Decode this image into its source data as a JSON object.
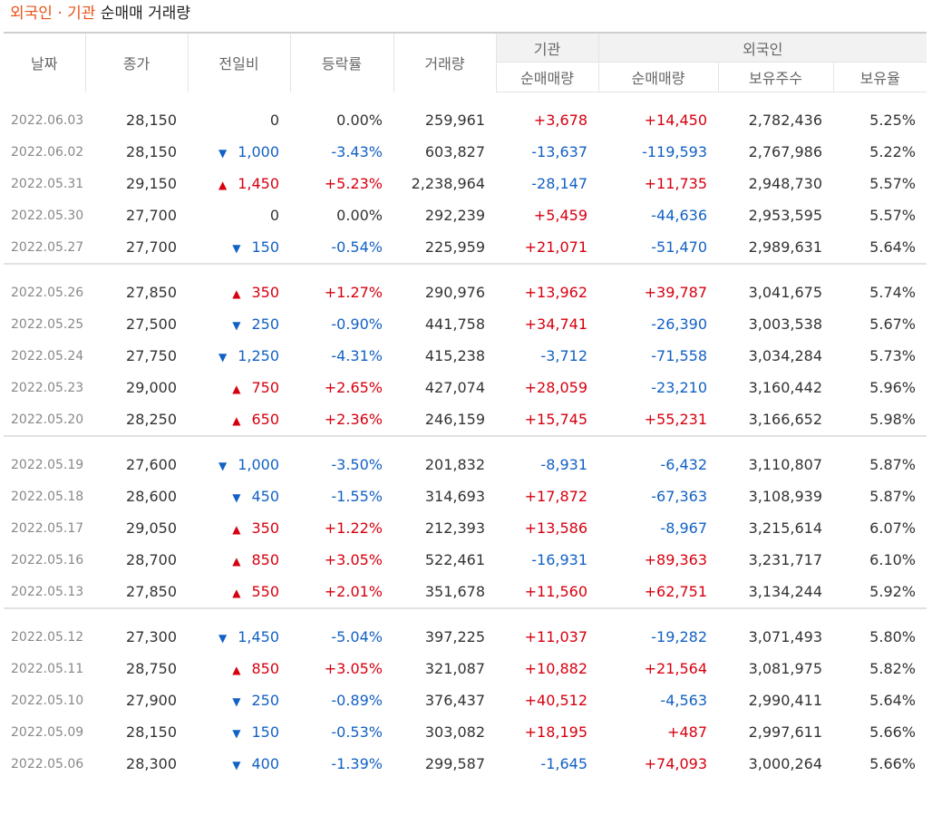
{
  "title": {
    "part1": "외국인",
    "dot": "·",
    "part2": "기관",
    "rest": "순매매 거래량"
  },
  "headers": {
    "date": "날짜",
    "close": "종가",
    "change": "전일비",
    "rate": "등락률",
    "volume": "거래량",
    "institution": "기관",
    "foreign": "외국인",
    "inst_net": "순매매량",
    "foreign_net": "순매매량",
    "holdings": "보유주수",
    "holding_rate": "보유율"
  },
  "colors": {
    "up": "#d6000f",
    "down": "#1261c4",
    "accent": "#e8541a"
  },
  "groups": [
    [
      {
        "date": "2022.06.03",
        "close": "28,150",
        "dir": "none",
        "change": "0",
        "rate": "0.00%",
        "volume": "259,961",
        "inst": "+3,678",
        "foreign": "+14,450",
        "holdings": "2,782,436",
        "hold_rate": "5.25%"
      },
      {
        "date": "2022.06.02",
        "close": "28,150",
        "dir": "down",
        "change": "1,000",
        "rate": "-3.43%",
        "volume": "603,827",
        "inst": "-13,637",
        "foreign": "-119,593",
        "holdings": "2,767,986",
        "hold_rate": "5.22%"
      },
      {
        "date": "2022.05.31",
        "close": "29,150",
        "dir": "up",
        "change": "1,450",
        "rate": "+5.23%",
        "volume": "2,238,964",
        "inst": "-28,147",
        "foreign": "+11,735",
        "holdings": "2,948,730",
        "hold_rate": "5.57%"
      },
      {
        "date": "2022.05.30",
        "close": "27,700",
        "dir": "none",
        "change": "0",
        "rate": "0.00%",
        "volume": "292,239",
        "inst": "+5,459",
        "foreign": "-44,636",
        "holdings": "2,953,595",
        "hold_rate": "5.57%"
      },
      {
        "date": "2022.05.27",
        "close": "27,700",
        "dir": "down",
        "change": "150",
        "rate": "-0.54%",
        "volume": "225,959",
        "inst": "+21,071",
        "foreign": "-51,470",
        "holdings": "2,989,631",
        "hold_rate": "5.64%"
      }
    ],
    [
      {
        "date": "2022.05.26",
        "close": "27,850",
        "dir": "up",
        "change": "350",
        "rate": "+1.27%",
        "volume": "290,976",
        "inst": "+13,962",
        "foreign": "+39,787",
        "holdings": "3,041,675",
        "hold_rate": "5.74%"
      },
      {
        "date": "2022.05.25",
        "close": "27,500",
        "dir": "down",
        "change": "250",
        "rate": "-0.90%",
        "volume": "441,758",
        "inst": "+34,741",
        "foreign": "-26,390",
        "holdings": "3,003,538",
        "hold_rate": "5.67%"
      },
      {
        "date": "2022.05.24",
        "close": "27,750",
        "dir": "down",
        "change": "1,250",
        "rate": "-4.31%",
        "volume": "415,238",
        "inst": "-3,712",
        "foreign": "-71,558",
        "holdings": "3,034,284",
        "hold_rate": "5.73%"
      },
      {
        "date": "2022.05.23",
        "close": "29,000",
        "dir": "up",
        "change": "750",
        "rate": "+2.65%",
        "volume": "427,074",
        "inst": "+28,059",
        "foreign": "-23,210",
        "holdings": "3,160,442",
        "hold_rate": "5.96%"
      },
      {
        "date": "2022.05.20",
        "close": "28,250",
        "dir": "up",
        "change": "650",
        "rate": "+2.36%",
        "volume": "246,159",
        "inst": "+15,745",
        "foreign": "+55,231",
        "holdings": "3,166,652",
        "hold_rate": "5.98%"
      }
    ],
    [
      {
        "date": "2022.05.19",
        "close": "27,600",
        "dir": "down",
        "change": "1,000",
        "rate": "-3.50%",
        "volume": "201,832",
        "inst": "-8,931",
        "foreign": "-6,432",
        "holdings": "3,110,807",
        "hold_rate": "5.87%"
      },
      {
        "date": "2022.05.18",
        "close": "28,600",
        "dir": "down",
        "change": "450",
        "rate": "-1.55%",
        "volume": "314,693",
        "inst": "+17,872",
        "foreign": "-67,363",
        "holdings": "3,108,939",
        "hold_rate": "5.87%"
      },
      {
        "date": "2022.05.17",
        "close": "29,050",
        "dir": "up",
        "change": "350",
        "rate": "+1.22%",
        "volume": "212,393",
        "inst": "+13,586",
        "foreign": "-8,967",
        "holdings": "3,215,614",
        "hold_rate": "6.07%"
      },
      {
        "date": "2022.05.16",
        "close": "28,700",
        "dir": "up",
        "change": "850",
        "rate": "+3.05%",
        "volume": "522,461",
        "inst": "-16,931",
        "foreign": "+89,363",
        "holdings": "3,231,717",
        "hold_rate": "6.10%"
      },
      {
        "date": "2022.05.13",
        "close": "27,850",
        "dir": "up",
        "change": "550",
        "rate": "+2.01%",
        "volume": "351,678",
        "inst": "+11,560",
        "foreign": "+62,751",
        "holdings": "3,134,244",
        "hold_rate": "5.92%"
      }
    ],
    [
      {
        "date": "2022.05.12",
        "close": "27,300",
        "dir": "down",
        "change": "1,450",
        "rate": "-5.04%",
        "volume": "397,225",
        "inst": "+11,037",
        "foreign": "-19,282",
        "holdings": "3,071,493",
        "hold_rate": "5.80%"
      },
      {
        "date": "2022.05.11",
        "close": "28,750",
        "dir": "up",
        "change": "850",
        "rate": "+3.05%",
        "volume": "321,087",
        "inst": "+10,882",
        "foreign": "+21,564",
        "holdings": "3,081,975",
        "hold_rate": "5.82%"
      },
      {
        "date": "2022.05.10",
        "close": "27,900",
        "dir": "down",
        "change": "250",
        "rate": "-0.89%",
        "volume": "376,437",
        "inst": "+40,512",
        "foreign": "-4,563",
        "holdings": "2,990,411",
        "hold_rate": "5.64%"
      },
      {
        "date": "2022.05.09",
        "close": "28,150",
        "dir": "down",
        "change": "150",
        "rate": "-0.53%",
        "volume": "303,082",
        "inst": "+18,195",
        "foreign": "+487",
        "holdings": "2,997,611",
        "hold_rate": "5.66%"
      },
      {
        "date": "2022.05.06",
        "close": "28,300",
        "dir": "down",
        "change": "400",
        "rate": "-1.39%",
        "volume": "299,587",
        "inst": "-1,645",
        "foreign": "+74,093",
        "holdings": "3,000,264",
        "hold_rate": "5.66%"
      }
    ]
  ]
}
